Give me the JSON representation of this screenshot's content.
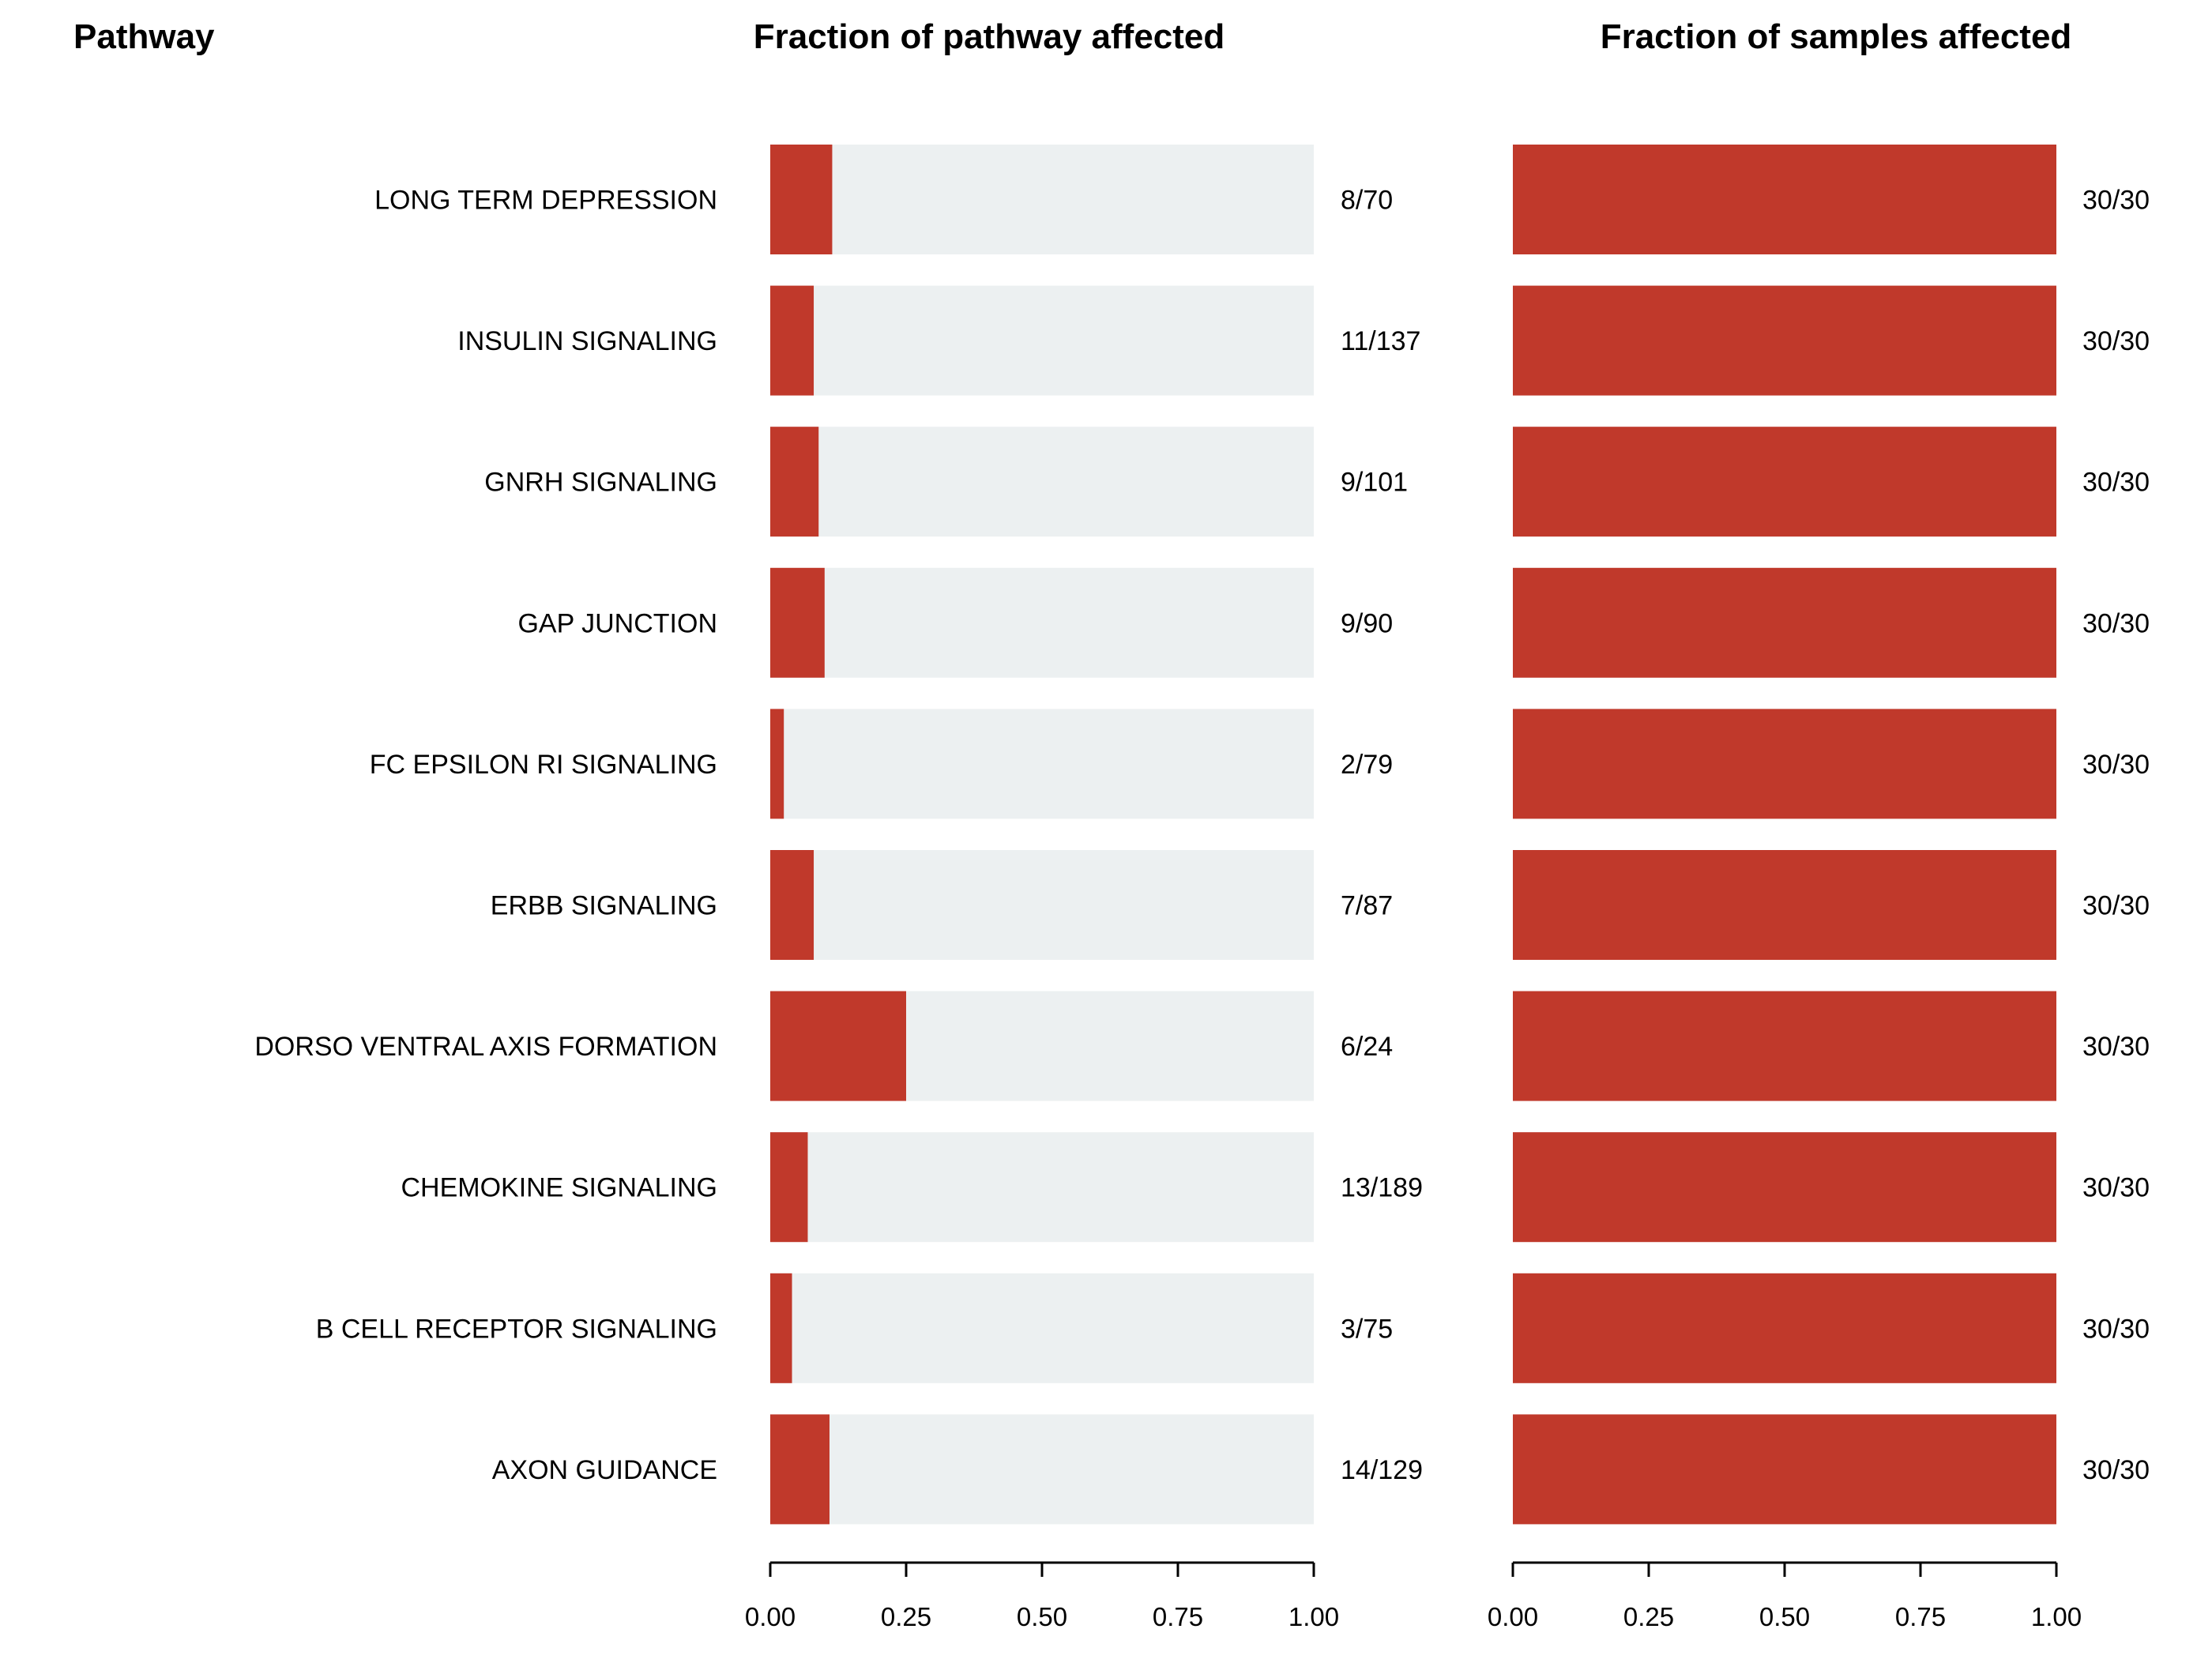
{
  "headers": {
    "pathway": "Pathway",
    "panel1": "Fraction of pathway affected",
    "panel2": "Fraction of samples affected"
  },
  "colors": {
    "affected": "#c0392b",
    "background": "#ecf0f1",
    "axis": "#000000"
  },
  "chart_data": [
    {
      "type": "bar",
      "orientation": "horizontal",
      "stacked": true,
      "title": "Fraction of pathway affected",
      "categories": [
        "LONG TERM DEPRESSION",
        "INSULIN SIGNALING",
        "GNRH SIGNALING",
        "GAP JUNCTION",
        "FC EPSILON RI SIGNALING",
        "ERBB SIGNALING",
        "DORSO VENTRAL AXIS FORMATION",
        "CHEMOKINE SIGNALING",
        "B CELL RECEPTOR SIGNALING",
        "AXON GUIDANCE"
      ],
      "values": [
        0.114,
        0.08,
        0.089,
        0.1,
        0.025,
        0.08,
        0.25,
        0.069,
        0.04,
        0.109
      ],
      "labels": [
        "8/70",
        "11/137",
        "9/101",
        "9/90",
        "2/79",
        "7/87",
        "6/24",
        "13/189",
        "3/75",
        "14/129"
      ],
      "xlim": [
        0,
        1
      ],
      "xticks": [
        "0.00",
        "0.25",
        "0.50",
        "0.75",
        "1.00"
      ],
      "grid": false
    },
    {
      "type": "bar",
      "orientation": "horizontal",
      "stacked": true,
      "title": "Fraction of samples affected",
      "categories": [
        "LONG TERM DEPRESSION",
        "INSULIN SIGNALING",
        "GNRH SIGNALING",
        "GAP JUNCTION",
        "FC EPSILON RI SIGNALING",
        "ERBB SIGNALING",
        "DORSO VENTRAL AXIS FORMATION",
        "CHEMOKINE SIGNALING",
        "B CELL RECEPTOR SIGNALING",
        "AXON GUIDANCE"
      ],
      "values": [
        1.0,
        1.0,
        1.0,
        1.0,
        1.0,
        1.0,
        1.0,
        1.0,
        1.0,
        1.0
      ],
      "labels": [
        "30/30",
        "30/30",
        "30/30",
        "30/30",
        "30/30",
        "30/30",
        "30/30",
        "30/30",
        "30/30",
        "30/30"
      ],
      "xlim": [
        0,
        1
      ],
      "xticks": [
        "0.00",
        "0.25",
        "0.50",
        "0.75",
        "1.00"
      ],
      "grid": false
    }
  ]
}
